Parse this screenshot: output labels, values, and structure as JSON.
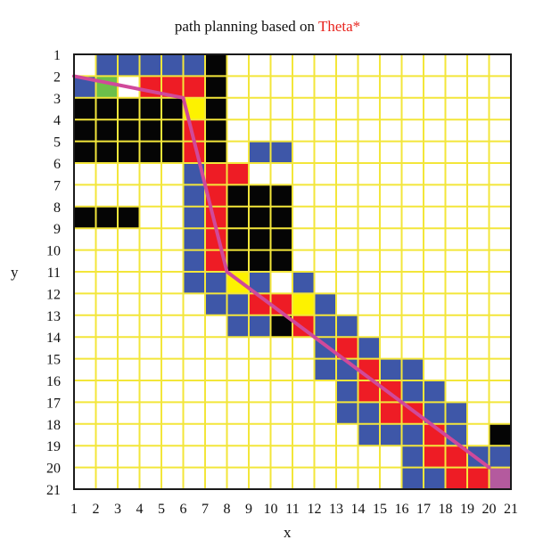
{
  "title": {
    "prefix": "path planning based on ",
    "highlight": "Theta*"
  },
  "chart_data": {
    "type": "heatmap",
    "xlabel": "x",
    "ylabel": "y",
    "x_ticks": [
      "1",
      "2",
      "3",
      "4",
      "5",
      "6",
      "7",
      "8",
      "9",
      "10",
      "11",
      "12",
      "13",
      "14",
      "15",
      "16",
      "17",
      "18",
      "19",
      "20",
      "21"
    ],
    "y_ticks": [
      "1",
      "2",
      "3",
      "4",
      "5",
      "6",
      "7",
      "8",
      "9",
      "10",
      "11",
      "12",
      "13",
      "14",
      "15",
      "16",
      "17",
      "18",
      "19",
      "20",
      "21"
    ],
    "grid_size": 20,
    "colors": {
      "free": "#ffffff",
      "grid_line": "#f3e63a",
      "obstacle": "#050505",
      "open": "#3e57a8",
      "closed": "#ee1c25",
      "highlight": "#fdf200",
      "start": "#6cbf4a",
      "goal": "#b45a9e",
      "path": "#d0499a",
      "border": "#1a1a1a"
    },
    "start": [
      1,
      1
    ],
    "goal": [
      19,
      19
    ],
    "path": [
      [
        1,
        2
      ],
      [
        6,
        3
      ],
      [
        8,
        11
      ],
      [
        20,
        20
      ]
    ],
    "obstacles": [
      [
        6,
        0
      ],
      [
        6,
        1
      ],
      [
        6,
        2
      ],
      [
        6,
        3
      ],
      [
        6,
        4
      ],
      [
        0,
        2
      ],
      [
        1,
        2
      ],
      [
        2,
        2
      ],
      [
        3,
        2
      ],
      [
        4,
        2
      ],
      [
        0,
        3
      ],
      [
        1,
        3
      ],
      [
        2,
        3
      ],
      [
        3,
        3
      ],
      [
        4,
        3
      ],
      [
        0,
        4
      ],
      [
        1,
        4
      ],
      [
        2,
        4
      ],
      [
        3,
        4
      ],
      [
        4,
        4
      ],
      [
        0,
        7
      ],
      [
        1,
        7
      ],
      [
        2,
        7
      ],
      [
        7,
        6
      ],
      [
        8,
        6
      ],
      [
        9,
        6
      ],
      [
        7,
        7
      ],
      [
        8,
        7
      ],
      [
        9,
        7
      ],
      [
        7,
        8
      ],
      [
        8,
        8
      ],
      [
        9,
        8
      ],
      [
        7,
        9
      ],
      [
        8,
        9
      ],
      [
        9,
        9
      ],
      [
        9,
        12
      ],
      [
        19,
        17
      ]
    ],
    "closed": [
      [
        3,
        1
      ],
      [
        4,
        1
      ],
      [
        5,
        1
      ],
      [
        5,
        3
      ],
      [
        5,
        4
      ],
      [
        6,
        5
      ],
      [
        6,
        6
      ],
      [
        6,
        7
      ],
      [
        6,
        8
      ],
      [
        6,
        9
      ],
      [
        7,
        5
      ],
      [
        8,
        11
      ],
      [
        9,
        11
      ],
      [
        10,
        12
      ],
      [
        12,
        13
      ],
      [
        13,
        14
      ],
      [
        13,
        15
      ],
      [
        14,
        15
      ],
      [
        14,
        16
      ],
      [
        15,
        16
      ],
      [
        16,
        17
      ],
      [
        16,
        18
      ],
      [
        17,
        18
      ],
      [
        17,
        19
      ],
      [
        18,
        19
      ]
    ],
    "highlights": [
      [
        5,
        2
      ],
      [
        7,
        10
      ],
      [
        10,
        11
      ]
    ],
    "open": [
      [
        1,
        0
      ],
      [
        2,
        0
      ],
      [
        3,
        0
      ],
      [
        4,
        0
      ],
      [
        5,
        0
      ],
      [
        0,
        1
      ],
      [
        5,
        1
      ],
      [
        8,
        4
      ],
      [
        9,
        4
      ],
      [
        5,
        5
      ],
      [
        5,
        6
      ],
      [
        5,
        7
      ],
      [
        5,
        8
      ],
      [
        5,
        9
      ],
      [
        5,
        10
      ],
      [
        6,
        10
      ],
      [
        7,
        10
      ],
      [
        8,
        10
      ],
      [
        6,
        11
      ],
      [
        7,
        11
      ],
      [
        7,
        12
      ],
      [
        8,
        12
      ],
      [
        9,
        11
      ],
      [
        10,
        10
      ],
      [
        10,
        11
      ],
      [
        11,
        11
      ],
      [
        11,
        12
      ],
      [
        12,
        12
      ],
      [
        11,
        13
      ],
      [
        11,
        14
      ],
      [
        12,
        14
      ],
      [
        12,
        15
      ],
      [
        12,
        16
      ],
      [
        13,
        16
      ],
      [
        13,
        13
      ],
      [
        14,
        14
      ],
      [
        13,
        17
      ],
      [
        14,
        17
      ],
      [
        15,
        14
      ],
      [
        15,
        15
      ],
      [
        15,
        17
      ],
      [
        15,
        18
      ],
      [
        16,
        15
      ],
      [
        16,
        16
      ],
      [
        16,
        19
      ],
      [
        17,
        16
      ],
      [
        17,
        17
      ],
      [
        18,
        18
      ],
      [
        19,
        18
      ],
      [
        15,
        19
      ]
    ]
  }
}
